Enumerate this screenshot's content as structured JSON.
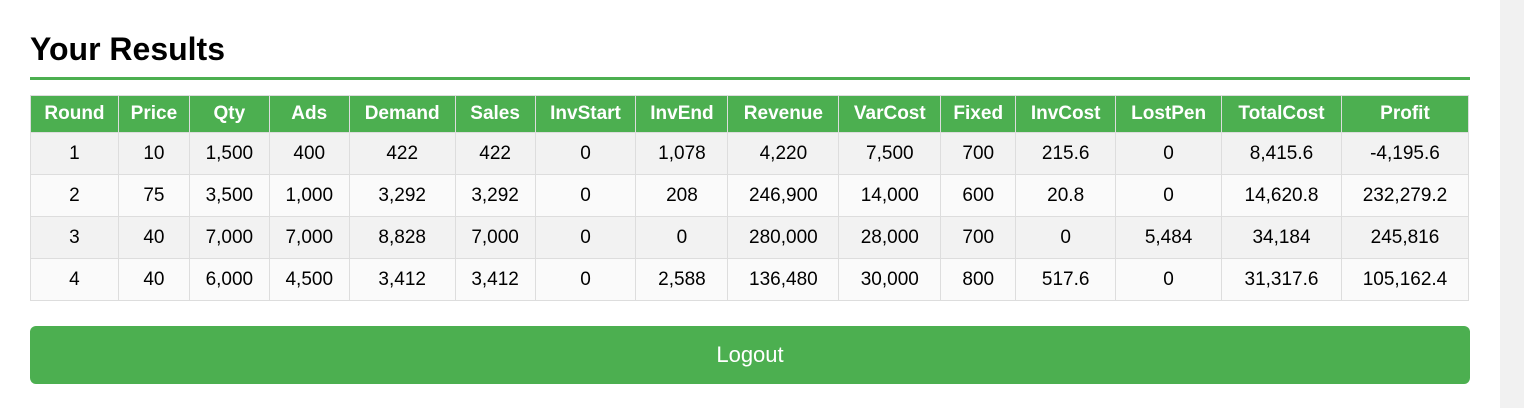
{
  "title": "Your Results",
  "table": {
    "headers": [
      "Round",
      "Price",
      "Qty",
      "Ads",
      "Demand",
      "Sales",
      "InvStart",
      "InvEnd",
      "Revenue",
      "VarCost",
      "Fixed",
      "InvCost",
      "LostPen",
      "TotalCost",
      "Profit"
    ],
    "rows": [
      [
        "1",
        "10",
        "1,500",
        "400",
        "422",
        "422",
        "0",
        "1,078",
        "4,220",
        "7,500",
        "700",
        "215.6",
        "0",
        "8,415.6",
        "-4,195.6"
      ],
      [
        "2",
        "75",
        "3,500",
        "1,000",
        "3,292",
        "3,292",
        "0",
        "208",
        "246,900",
        "14,000",
        "600",
        "20.8",
        "0",
        "14,620.8",
        "232,279.2"
      ],
      [
        "3",
        "40",
        "7,000",
        "7,000",
        "8,828",
        "7,000",
        "0",
        "0",
        "280,000",
        "28,000",
        "700",
        "0",
        "5,484",
        "34,184",
        "245,816"
      ],
      [
        "4",
        "40",
        "6,000",
        "4,500",
        "3,412",
        "3,412",
        "0",
        "2,588",
        "136,480",
        "30,000",
        "800",
        "517.6",
        "0",
        "31,317.6",
        "105,162.4"
      ]
    ]
  },
  "logout_label": "Logout",
  "colors": {
    "accent": "#4caf50",
    "row_odd": "#f2f2f2",
    "row_even": "#fafafa"
  }
}
